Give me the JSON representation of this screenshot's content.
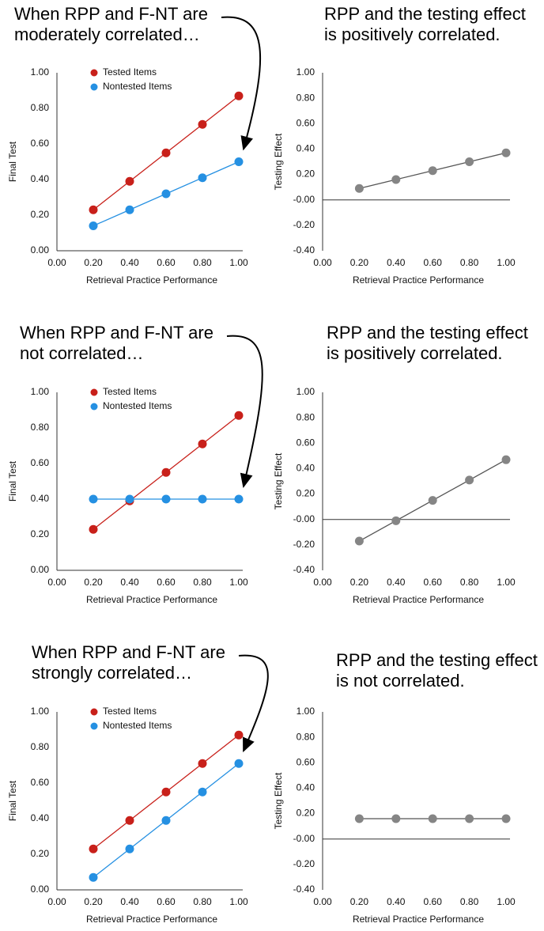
{
  "chart_data": [
    {
      "type": "line",
      "title": "When RPP and F-NT are moderately correlated…",
      "xlabel": "Retrieval Practice Performance",
      "ylabel": "Final Test",
      "x": [
        0.2,
        0.4,
        0.6,
        0.8,
        1.0
      ],
      "series": [
        {
          "name": "Tested Items",
          "color": "#c8201a",
          "values": [
            0.23,
            0.39,
            0.55,
            0.71,
            0.87
          ]
        },
        {
          "name": "Nontested Items",
          "color": "#2590e2",
          "values": [
            0.14,
            0.23,
            0.32,
            0.41,
            0.5
          ]
        }
      ],
      "xlim": [
        0,
        1
      ],
      "ylim": [
        0,
        1
      ],
      "xticks": [
        {
          "value": 0,
          "label": "0.00"
        },
        {
          "value": 0.2,
          "label": "0.20"
        },
        {
          "value": 0.4,
          "label": "0.40"
        },
        {
          "value": 0.6,
          "label": "0.60"
        },
        {
          "value": 0.8,
          "label": "0.80"
        },
        {
          "value": 1,
          "label": "1.00"
        }
      ],
      "yticks": [
        {
          "value": 0,
          "label": "0.00"
        },
        {
          "value": 0.2,
          "label": "0.20"
        },
        {
          "value": 0.4,
          "label": "0.40"
        },
        {
          "value": 0.6,
          "label": "0.60"
        },
        {
          "value": 0.8,
          "label": "0.80"
        },
        {
          "value": 1,
          "label": "1.00"
        }
      ],
      "legend": "upper left"
    },
    {
      "type": "line",
      "title": "RPP and the testing effect is positively correlated.",
      "xlabel": "Retrieval Practice Performance",
      "ylabel": "Testing Effect",
      "x": [
        0.2,
        0.4,
        0.6,
        0.8,
        1.0
      ],
      "values": [
        0.09,
        0.16,
        0.23,
        0.3,
        0.37
      ],
      "color": "#858585",
      "xlim": [
        0,
        1
      ],
      "ylim": [
        -0.4,
        1
      ],
      "xticks": [
        {
          "value": 0,
          "label": "0.00"
        },
        {
          "value": 0.2,
          "label": "0.20"
        },
        {
          "value": 0.4,
          "label": "0.40"
        },
        {
          "value": 0.6,
          "label": "0.60"
        },
        {
          "value": 0.8,
          "label": "0.80"
        },
        {
          "value": 1,
          "label": "1.00"
        }
      ],
      "yticks": [
        {
          "value": -0.4,
          "label": "-0.40"
        },
        {
          "value": -0.2,
          "label": "-0.20"
        },
        {
          "value": 0,
          "label": "-0.00"
        },
        {
          "value": 0.2,
          "label": "0.20"
        },
        {
          "value": 0.4,
          "label": "0.40"
        },
        {
          "value": 0.6,
          "label": "0.60"
        },
        {
          "value": 0.8,
          "label": "0.80"
        },
        {
          "value": 1,
          "label": "1.00"
        }
      ],
      "hline": 0
    },
    {
      "type": "line",
      "title": "When RPP and F-NT are not correlated…",
      "xlabel": "Retrieval Practice Performance",
      "ylabel": "Final Test",
      "x": [
        0.2,
        0.4,
        0.6,
        0.8,
        1.0
      ],
      "series": [
        {
          "name": "Tested Items",
          "color": "#c8201a",
          "values": [
            0.23,
            0.39,
            0.55,
            0.71,
            0.87
          ]
        },
        {
          "name": "Nontested Items",
          "color": "#2590e2",
          "values": [
            0.4,
            0.4,
            0.4,
            0.4,
            0.4
          ]
        }
      ],
      "xlim": [
        0,
        1
      ],
      "ylim": [
        0,
        1
      ],
      "xticks": [
        {
          "value": 0,
          "label": "0.00"
        },
        {
          "value": 0.2,
          "label": "0.20"
        },
        {
          "value": 0.4,
          "label": "0.40"
        },
        {
          "value": 0.6,
          "label": "0.60"
        },
        {
          "value": 0.8,
          "label": "0.80"
        },
        {
          "value": 1,
          "label": "1.00"
        }
      ],
      "yticks": [
        {
          "value": 0,
          "label": "0.00"
        },
        {
          "value": 0.2,
          "label": "0.20"
        },
        {
          "value": 0.4,
          "label": "0.40"
        },
        {
          "value": 0.6,
          "label": "0.60"
        },
        {
          "value": 0.8,
          "label": "0.80"
        },
        {
          "value": 1,
          "label": "1.00"
        }
      ],
      "legend": "upper left"
    },
    {
      "type": "line",
      "title": "RPP and the testing effect is positively correlated.",
      "xlabel": "Retrieval Practice Performance",
      "ylabel": "Testing Effect",
      "x": [
        0.2,
        0.4,
        0.6,
        0.8,
        1.0
      ],
      "values": [
        -0.17,
        -0.01,
        0.15,
        0.31,
        0.47
      ],
      "color": "#858585",
      "xlim": [
        0,
        1
      ],
      "ylim": [
        -0.4,
        1
      ],
      "xticks": [
        {
          "value": 0,
          "label": "0.00"
        },
        {
          "value": 0.2,
          "label": "0.20"
        },
        {
          "value": 0.4,
          "label": "0.40"
        },
        {
          "value": 0.6,
          "label": "0.60"
        },
        {
          "value": 0.8,
          "label": "0.80"
        },
        {
          "value": 1,
          "label": "1.00"
        }
      ],
      "yticks": [
        {
          "value": -0.4,
          "label": "-0.40"
        },
        {
          "value": -0.2,
          "label": "-0.20"
        },
        {
          "value": 0,
          "label": "-0.00"
        },
        {
          "value": 0.2,
          "label": "0.20"
        },
        {
          "value": 0.4,
          "label": "0.40"
        },
        {
          "value": 0.6,
          "label": "0.60"
        },
        {
          "value": 0.8,
          "label": "0.80"
        },
        {
          "value": 1,
          "label": "1.00"
        }
      ],
      "hline": 0
    },
    {
      "type": "line",
      "title": "When RPP and F-NT are strongly correlated…",
      "xlabel": "Retrieval Practice Performance",
      "ylabel": "Final Test",
      "x": [
        0.2,
        0.4,
        0.6,
        0.8,
        1.0
      ],
      "series": [
        {
          "name": "Tested Items",
          "color": "#c8201a",
          "values": [
            0.23,
            0.39,
            0.55,
            0.71,
            0.87
          ]
        },
        {
          "name": "Nontested Items",
          "color": "#2590e2",
          "values": [
            0.07,
            0.23,
            0.39,
            0.55,
            0.71
          ]
        }
      ],
      "xlim": [
        0,
        1
      ],
      "ylim": [
        0,
        1
      ],
      "xticks": [
        {
          "value": 0,
          "label": "0.00"
        },
        {
          "value": 0.2,
          "label": "0.20"
        },
        {
          "value": 0.4,
          "label": "0.40"
        },
        {
          "value": 0.6,
          "label": "0.60"
        },
        {
          "value": 0.8,
          "label": "0.80"
        },
        {
          "value": 1,
          "label": "1.00"
        }
      ],
      "yticks": [
        {
          "value": 0,
          "label": "0.00"
        },
        {
          "value": 0.2,
          "label": "0.20"
        },
        {
          "value": 0.4,
          "label": "0.40"
        },
        {
          "value": 0.6,
          "label": "0.60"
        },
        {
          "value": 0.8,
          "label": "0.80"
        },
        {
          "value": 1,
          "label": "1.00"
        }
      ],
      "legend": "upper left"
    },
    {
      "type": "line",
      "title": "RPP and the testing effect is not correlated.",
      "xlabel": "Retrieval Practice Performance",
      "ylabel": "Testing Effect",
      "x": [
        0.2,
        0.4,
        0.6,
        0.8,
        1.0
      ],
      "values": [
        0.16,
        0.16,
        0.16,
        0.16,
        0.16
      ],
      "color": "#858585",
      "xlim": [
        0,
        1
      ],
      "ylim": [
        -0.4,
        1
      ],
      "xticks": [
        {
          "value": 0,
          "label": "0.00"
        },
        {
          "value": 0.2,
          "label": "0.20"
        },
        {
          "value": 0.4,
          "label": "0.40"
        },
        {
          "value": 0.6,
          "label": "0.60"
        },
        {
          "value": 0.8,
          "label": "0.80"
        },
        {
          "value": 1,
          "label": "1.00"
        }
      ],
      "yticks": [
        {
          "value": -0.4,
          "label": "-0.40"
        },
        {
          "value": -0.2,
          "label": "-0.20"
        },
        {
          "value": 0,
          "label": "-0.00"
        },
        {
          "value": 0.2,
          "label": "0.20"
        },
        {
          "value": 0.4,
          "label": "0.40"
        },
        {
          "value": 0.6,
          "label": "0.60"
        },
        {
          "value": 0.8,
          "label": "0.80"
        },
        {
          "value": 1,
          "label": "1.00"
        }
      ],
      "hline": 0
    }
  ]
}
